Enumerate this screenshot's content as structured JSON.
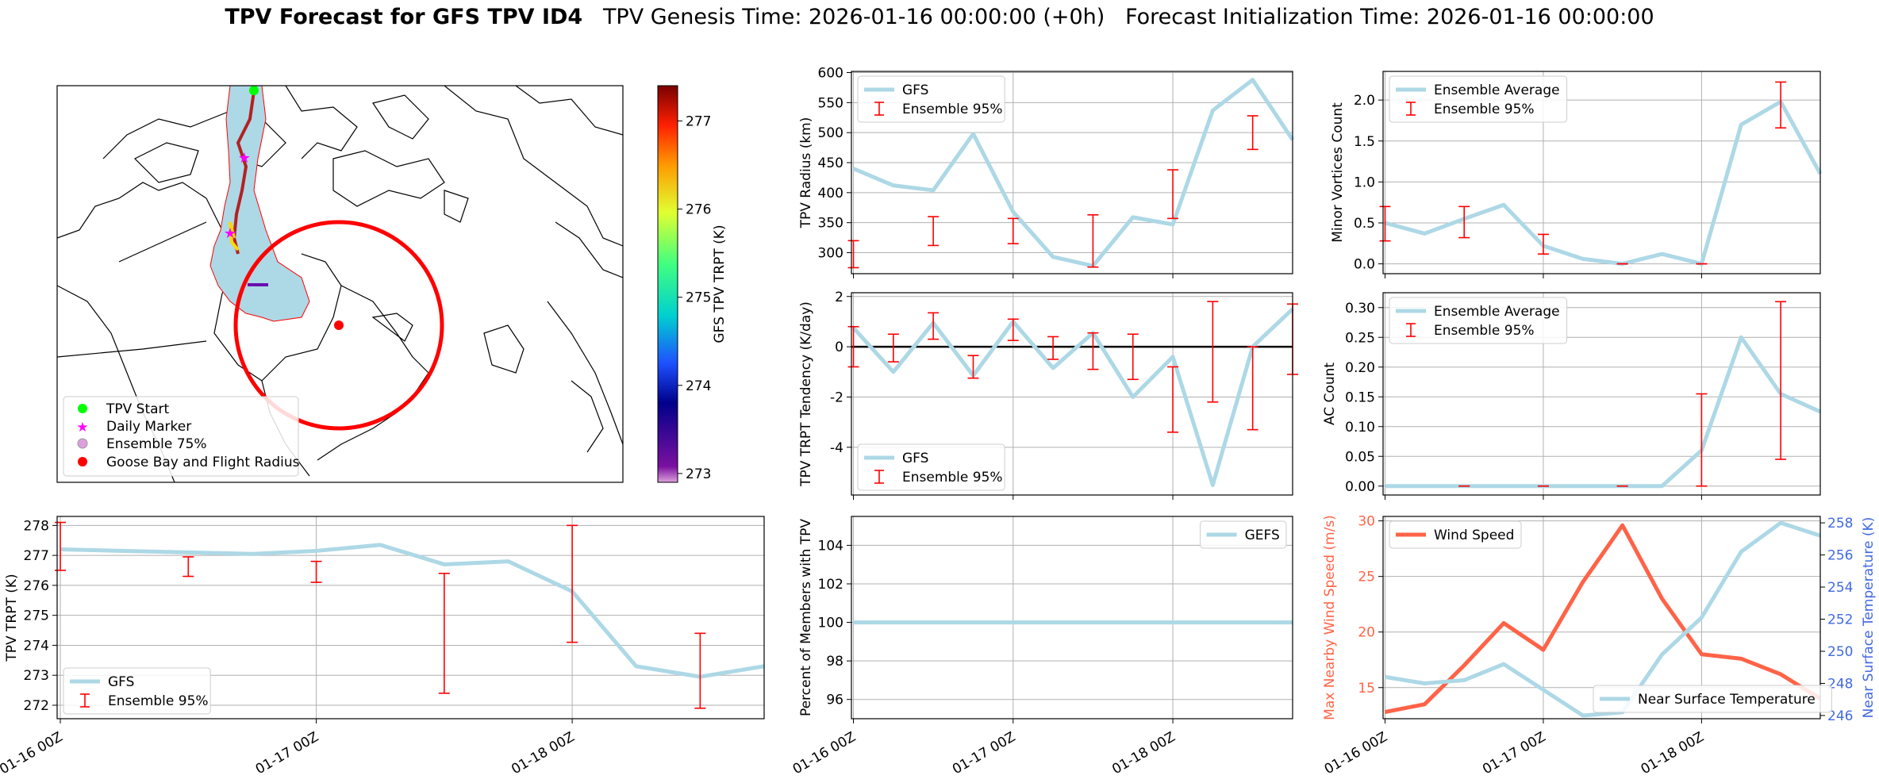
{
  "title": {
    "bold": "TPV Forecast for GFS TPV ID4",
    "genesis": "TPV Genesis Time: 2026-01-16 00:00:00 (+0h)",
    "init": "Forecast Initialization Time: 2026-01-16 00:00:00"
  },
  "colors": {
    "gfs_line": "#add8e6",
    "error_bar": "#ff0000",
    "wind": "#ff6347",
    "temp_axis": "#4169e1",
    "flight_radius": "#ff0000",
    "ensemble_fill": "#add8e6"
  },
  "map": {
    "legend": [
      "TPV Start",
      "Daily Marker",
      "Ensemble 75%",
      "Goose Bay and Flight Radius"
    ],
    "colorbar": {
      "label": "GFS TPV TRPT (K)",
      "ticks": [
        273,
        274,
        275,
        276,
        277
      ],
      "range": [
        272.9,
        277.4
      ]
    }
  },
  "chart_data": [
    {
      "id": "radius",
      "type": "line",
      "ylabel": "TPV Radius (km)",
      "ylim": [
        265,
        602
      ],
      "yticks": [
        300,
        350,
        400,
        450,
        500,
        550,
        600
      ],
      "legend": [
        "GFS",
        "Ensemble 95%"
      ],
      "legend_pos": "top-left",
      "x": [
        0,
        6,
        12,
        18,
        24,
        30,
        36,
        42,
        48,
        54,
        60,
        66
      ],
      "series": [
        {
          "name": "GFS",
          "values": [
            440,
            412,
            404,
            498,
            368,
            293,
            278,
            359,
            347,
            537,
            588,
            488
          ]
        }
      ],
      "errorbars": [
        {
          "x": 0,
          "lo": 275,
          "hi": 320
        },
        {
          "x": 12,
          "lo": 312,
          "hi": 360
        },
        {
          "x": 24,
          "lo": 315,
          "hi": 357
        },
        {
          "x": 36,
          "lo": 276,
          "hi": 363
        },
        {
          "x": 48,
          "lo": 357,
          "hi": 438
        },
        {
          "x": 60,
          "lo": 472,
          "hi": 528
        }
      ]
    },
    {
      "id": "minor",
      "type": "line",
      "ylabel": "Minor Vortices Count",
      "ylim": [
        -0.12,
        2.35
      ],
      "yticks": [
        0.0,
        0.5,
        1.0,
        1.5,
        2.0
      ],
      "tick_decimals": 1,
      "legend": [
        "Ensemble Average",
        "Ensemble 95%"
      ],
      "legend_pos": "top-left",
      "x": [
        0,
        6,
        12,
        18,
        24,
        30,
        36,
        42,
        48,
        54,
        60,
        66
      ],
      "series": [
        {
          "name": "Ensemble Average",
          "values": [
            0.5,
            0.37,
            0.55,
            0.72,
            0.22,
            0.06,
            0.0,
            0.12,
            0.0,
            1.7,
            1.98,
            1.1
          ]
        }
      ],
      "errorbars": [
        {
          "x": 0,
          "lo": 0.28,
          "hi": 0.7
        },
        {
          "x": 12,
          "lo": 0.32,
          "hi": 0.7
        },
        {
          "x": 24,
          "lo": 0.12,
          "hi": 0.36
        },
        {
          "x": 36,
          "lo": 0.0,
          "hi": 0.0
        },
        {
          "x": 48,
          "lo": 0.0,
          "hi": 0.0
        },
        {
          "x": 60,
          "lo": 1.66,
          "hi": 2.22
        }
      ]
    },
    {
      "id": "tendency",
      "type": "line",
      "ylabel": "TPV TRPT Tendency (K/day)",
      "ylim": [
        -5.9,
        2.15
      ],
      "yticks": [
        -4,
        -2,
        0,
        2
      ],
      "zero_line": true,
      "legend": [
        "GFS",
        "Ensemble 95%"
      ],
      "legend_pos": "bottom-left",
      "x": [
        0,
        6,
        12,
        18,
        24,
        30,
        36,
        42,
        48,
        54,
        60,
        66
      ],
      "series": [
        {
          "name": "GFS",
          "values": [
            0.75,
            -1.0,
            0.95,
            -1.15,
            1.0,
            -0.85,
            0.55,
            -2.0,
            -0.4,
            -5.5,
            0.0,
            1.5
          ]
        }
      ],
      "errorbars": [
        {
          "x": 0,
          "lo": -0.8,
          "hi": 0.8
        },
        {
          "x": 6,
          "lo": -0.6,
          "hi": 0.5
        },
        {
          "x": 12,
          "lo": 0.3,
          "hi": 1.35
        },
        {
          "x": 18,
          "lo": -1.25,
          "hi": -0.35
        },
        {
          "x": 24,
          "lo": 0.25,
          "hi": 1.1
        },
        {
          "x": 30,
          "lo": -0.5,
          "hi": 0.4
        },
        {
          "x": 36,
          "lo": -0.9,
          "hi": 0.55
        },
        {
          "x": 42,
          "lo": -1.3,
          "hi": 0.5
        },
        {
          "x": 48,
          "lo": -3.4,
          "hi": -0.8
        },
        {
          "x": 54,
          "lo": -2.2,
          "hi": 1.8
        },
        {
          "x": 60,
          "lo": -3.3,
          "hi": 0.0
        },
        {
          "x": 66,
          "lo": -1.1,
          "hi": 1.7
        }
      ]
    },
    {
      "id": "ac",
      "type": "line",
      "ylabel": "AC Count",
      "ylim": [
        -0.015,
        0.325
      ],
      "yticks": [
        0.0,
        0.05,
        0.1,
        0.15,
        0.2,
        0.25,
        0.3
      ],
      "tick_decimals": 2,
      "legend": [
        "Ensemble Average",
        "Ensemble 95%"
      ],
      "legend_pos": "top-left",
      "x": [
        0,
        6,
        12,
        18,
        24,
        30,
        36,
        42,
        48,
        54,
        60,
        66
      ],
      "series": [
        {
          "name": "Ensemble Average",
          "values": [
            0,
            0,
            0,
            0,
            0,
            0,
            0,
            0,
            0.06,
            0.25,
            0.155,
            0.125
          ]
        }
      ],
      "errorbars": [
        {
          "x": 12,
          "lo": 0,
          "hi": 0
        },
        {
          "x": 24,
          "lo": 0,
          "hi": 0
        },
        {
          "x": 36,
          "lo": 0,
          "hi": 0
        },
        {
          "x": 48,
          "lo": 0.0,
          "hi": 0.155
        },
        {
          "x": 60,
          "lo": 0.045,
          "hi": 0.31
        }
      ]
    },
    {
      "id": "trpt",
      "type": "line",
      "ylabel": "TPV TRPT (K)",
      "ylim": [
        271.55,
        278.3
      ],
      "yticks": [
        272,
        273,
        274,
        275,
        276,
        277,
        278
      ],
      "legend": [
        "GFS",
        "Ensemble 95%"
      ],
      "legend_pos": "bottom-left",
      "xtick_labels": [
        "01-16 00Z",
        "01-17 00Z",
        "01-18 00Z"
      ],
      "xtick_hours": [
        0,
        24,
        48
      ],
      "x": [
        0,
        6,
        12,
        18,
        24,
        30,
        36,
        42,
        48,
        54,
        60,
        66
      ],
      "series": [
        {
          "name": "GFS",
          "values": [
            277.2,
            277.15,
            277.1,
            277.05,
            277.15,
            277.35,
            276.7,
            276.8,
            275.8,
            273.3,
            272.95,
            273.3
          ]
        }
      ],
      "errorbars": [
        {
          "x": 0,
          "lo": 276.5,
          "hi": 278.1
        },
        {
          "x": 12,
          "lo": 276.3,
          "hi": 276.95
        },
        {
          "x": 24,
          "lo": 276.1,
          "hi": 276.8
        },
        {
          "x": 36,
          "lo": 272.4,
          "hi": 276.4
        },
        {
          "x": 48,
          "lo": 274.1,
          "hi": 278.0
        },
        {
          "x": 60,
          "lo": 271.9,
          "hi": 274.4
        }
      ]
    },
    {
      "id": "percent",
      "type": "line",
      "ylabel": "Percent of Members with TPV",
      "ylim": [
        95.0,
        105.5
      ],
      "yticks": [
        96,
        98,
        100,
        102,
        104
      ],
      "legend": [
        "GEFS"
      ],
      "legend_pos": "top-right",
      "xtick_labels": [
        "01-16 00Z",
        "01-17 00Z",
        "01-18 00Z"
      ],
      "xtick_hours": [
        0,
        24,
        48
      ],
      "x": [
        0,
        66
      ],
      "series": [
        {
          "name": "GEFS",
          "values": [
            100,
            100
          ]
        }
      ]
    },
    {
      "id": "wind_temp",
      "type": "line",
      "ylabel": "Max Nearby Wind Speed (m/s)",
      "ylim": [
        12.2,
        30.4
      ],
      "yticks": [
        15,
        20,
        25,
        30
      ],
      "y2label": "Near Surface Temperature (K)",
      "y2lim": [
        245.8,
        258.4
      ],
      "y2ticks": [
        246,
        248,
        250,
        252,
        254,
        256,
        258
      ],
      "legend": [
        "Wind Speed",
        "Near Surface Temperature"
      ],
      "xtick_labels": [
        "01-16 00Z",
        "01-17 00Z",
        "01-18 00Z"
      ],
      "xtick_hours": [
        0,
        24,
        48
      ],
      "x": [
        0,
        6,
        12,
        18,
        24,
        30,
        36,
        42,
        48,
        54,
        60,
        66
      ],
      "series": [
        {
          "name": "Wind Speed",
          "axis": "left",
          "values": [
            12.8,
            13.5,
            17.0,
            20.8,
            18.4,
            24.5,
            29.6,
            23.0,
            18.0,
            17.6,
            16.2,
            14.0
          ]
        },
        {
          "name": "Near Surface Temperature",
          "axis": "right",
          "values": [
            248.4,
            248.0,
            248.2,
            249.2,
            247.6,
            246.0,
            246.2,
            249.8,
            252.1,
            256.2,
            258.0,
            257.2
          ]
        }
      ]
    }
  ]
}
